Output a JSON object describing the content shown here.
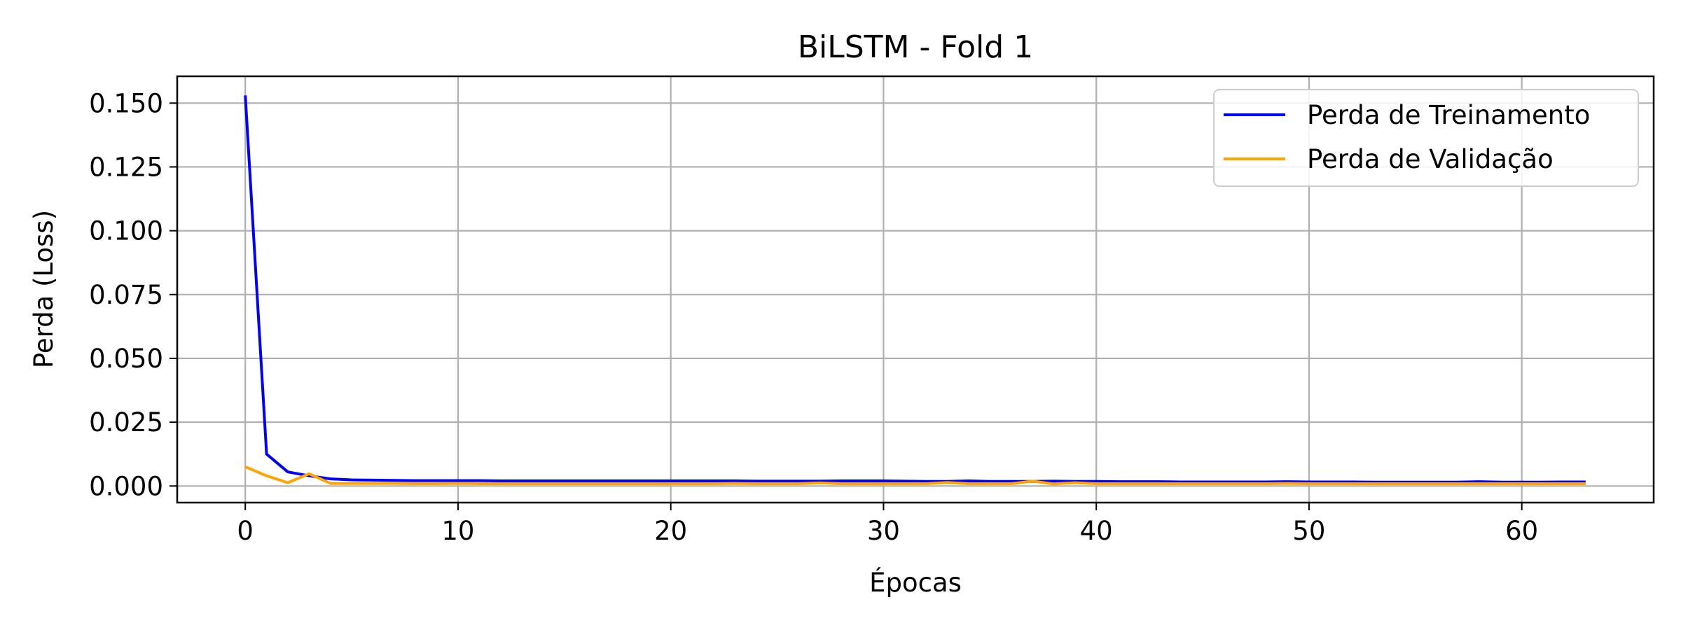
{
  "chart_data": {
    "type": "line",
    "title": "BiLSTM - Fold 1",
    "xlabel": "Épocas",
    "ylabel": "Perda (Loss)",
    "xlim": [
      -3.2,
      66.2
    ],
    "ylim": [
      -0.0065,
      0.1605
    ],
    "xticks": [
      0,
      10,
      20,
      30,
      40,
      50,
      60
    ],
    "xtick_labels": [
      "0",
      "10",
      "20",
      "30",
      "40",
      "50",
      "60"
    ],
    "yticks": [
      0,
      0.025,
      0.05,
      0.075,
      0.1,
      0.125,
      0.15
    ],
    "ytick_labels": [
      "0.000",
      "0.025",
      "0.050",
      "0.075",
      "0.100",
      "0.125",
      "0.150"
    ],
    "grid": true,
    "legend_position": "top-right",
    "series": [
      {
        "name": "Perda de Treinamento",
        "color": "#0000ff",
        "x": [
          0,
          1,
          2,
          3,
          4,
          5,
          6,
          7,
          8,
          9,
          10,
          11,
          12,
          13,
          14,
          15,
          16,
          17,
          18,
          19,
          20,
          21,
          22,
          23,
          24,
          25,
          26,
          27,
          28,
          29,
          30,
          31,
          32,
          33,
          34,
          35,
          36,
          37,
          38,
          39,
          40,
          41,
          42,
          43,
          44,
          45,
          46,
          47,
          48,
          49,
          50,
          51,
          52,
          53,
          54,
          55,
          56,
          57,
          58,
          59,
          60,
          61,
          62,
          63
        ],
        "values": [
          0.153,
          0.0125,
          0.0055,
          0.004,
          0.0028,
          0.0024,
          0.0023,
          0.0022,
          0.0021,
          0.0021,
          0.0021,
          0.0021,
          0.002,
          0.002,
          0.002,
          0.002,
          0.002,
          0.002,
          0.002,
          0.002,
          0.002,
          0.002,
          0.002,
          0.002,
          0.0019,
          0.0019,
          0.0019,
          0.0019,
          0.002,
          0.002,
          0.002,
          0.0019,
          0.0018,
          0.0018,
          0.002,
          0.0018,
          0.0018,
          0.0018,
          0.0019,
          0.0018,
          0.0018,
          0.0017,
          0.0017,
          0.0017,
          0.0016,
          0.0016,
          0.0016,
          0.0016,
          0.0016,
          0.0017,
          0.0016,
          0.0016,
          0.0016,
          0.0015,
          0.0015,
          0.0015,
          0.0015,
          0.0015,
          0.0017,
          0.0015,
          0.0015,
          0.0015,
          0.0016,
          0.0016
        ]
      },
      {
        "name": "Perda de Validação",
        "color": "#ffa500",
        "x": [
          0,
          1,
          2,
          3,
          4,
          5,
          6,
          7,
          8,
          9,
          10,
          11,
          12,
          13,
          14,
          15,
          16,
          17,
          18,
          19,
          20,
          21,
          22,
          23,
          24,
          25,
          26,
          27,
          28,
          29,
          30,
          31,
          32,
          33,
          34,
          35,
          36,
          37,
          38,
          39,
          40,
          41,
          42,
          43,
          44,
          45,
          46,
          47,
          48,
          49,
          50,
          51,
          52,
          53,
          54,
          55,
          56,
          57,
          58,
          59,
          60,
          61,
          62,
          63
        ],
        "values": [
          0.0075,
          0.004,
          0.0013,
          0.0048,
          0.001,
          0.001,
          0.001,
          0.001,
          0.0009,
          0.0009,
          0.001,
          0.0009,
          0.0009,
          0.0009,
          0.0009,
          0.0009,
          0.0009,
          0.0009,
          0.0009,
          0.0009,
          0.0009,
          0.0009,
          0.0009,
          0.001,
          0.0009,
          0.0009,
          0.0009,
          0.0012,
          0.0009,
          0.0009,
          0.0009,
          0.0009,
          0.0009,
          0.0014,
          0.0009,
          0.0009,
          0.0009,
          0.0019,
          0.0008,
          0.0013,
          0.0009,
          0.0009,
          0.0009,
          0.0009,
          0.0009,
          0.0009,
          0.0009,
          0.0009,
          0.0009,
          0.001,
          0.0009,
          0.0009,
          0.0009,
          0.0009,
          0.0009,
          0.0009,
          0.0009,
          0.0009,
          0.0009,
          0.0009,
          0.0009,
          0.0009,
          0.0009,
          0.0009
        ]
      }
    ]
  }
}
